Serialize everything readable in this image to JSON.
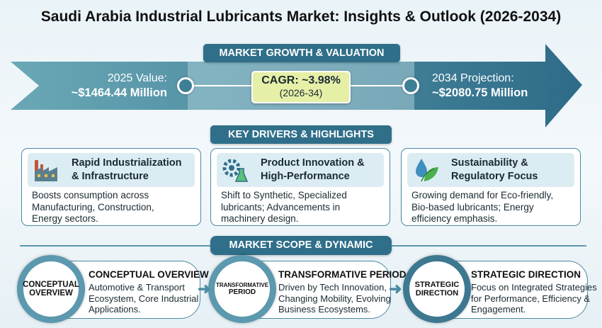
{
  "title": "Saudi Arabia Industrial Lubricants Market: Insights & Outlook (2026-2034)",
  "growth": {
    "banner": "MARKET GROWTH & VALUATION",
    "start_label": "2025 Value:",
    "start_value": "~$1464.44 Million",
    "cagr": "CAGR: ~3.98%",
    "cagr_period": "(2026-34)",
    "end_label": "2034 Projection:",
    "end_value": "~$2080.75 Million"
  },
  "drivers": {
    "banner": "KEY DRIVERS & HIGHLIGHTS",
    "cards": [
      {
        "title1": "Rapid Industrialization",
        "title2": "& Infrastructure",
        "body": [
          "Boosts consumption across",
          "Manufacturing, Construction,",
          "Energy sectors."
        ],
        "icon": "factory-icon"
      },
      {
        "title1": "Product Innovation &",
        "title2": "High-Performance",
        "body": [
          "Shift to Synthetic, Specialized",
          "lubricants; Advancements in",
          "machinery design."
        ],
        "icon": "gear-flask-icon"
      },
      {
        "title1": "Sustainability &",
        "title2": "Regulatory Focus",
        "body": [
          "Growing demand for Eco-friendly,",
          "Bio-based lubricants; Energy",
          "efficiency emphasis."
        ],
        "icon": "leaf-drop-icon"
      }
    ]
  },
  "scope": {
    "banner": "MARKET SCOPE & DYNAMIC",
    "stages": [
      {
        "circle1": "CONCEPTUAL",
        "circle2": "OVERVIEW",
        "title": "CONCEPTUAL OVERVIEW",
        "body": [
          "Automotive & Transport",
          "Ecosystem, Core Industrial",
          "Applications."
        ]
      },
      {
        "circle1": "TRANSFORMATIVE",
        "circle2": "PERIOD",
        "title": "TRANSFORMATIVE PERIOD",
        "body": [
          "Driven by Tech Innovation,",
          "Changing Mobility, Evolving",
          "Business Ecosystems."
        ]
      },
      {
        "circle1": "STRATEGIC",
        "circle2": "DIRECTION",
        "title": "STRATEGIC DIRECTION",
        "body": [
          "Focus on Integrated Strategies",
          "for Performance, Efficiency &",
          "Engagement."
        ]
      }
    ]
  }
}
